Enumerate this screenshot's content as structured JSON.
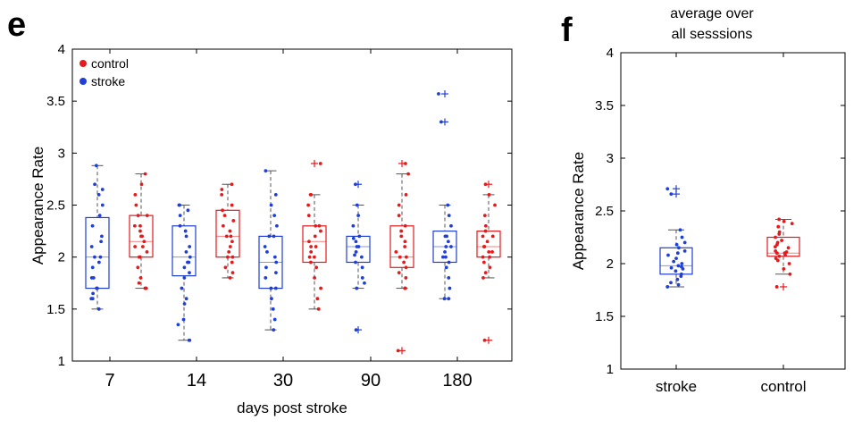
{
  "colors": {
    "control": "#e41a1c",
    "stroke": "#1f3fd6",
    "whisker": "#555555"
  },
  "chart_data": [
    {
      "panel": "e",
      "type": "box",
      "title": "",
      "xlabel": "days post stroke",
      "ylabel": "Appearance Rate",
      "ylim": [
        1,
        4
      ],
      "yticks": [
        1,
        1.5,
        2,
        2.5,
        3,
        3.5,
        4
      ],
      "categories": [
        "7",
        "14",
        "30",
        "90",
        "180"
      ],
      "legend": {
        "placement": "top-left",
        "entries": [
          "control",
          "stroke"
        ]
      },
      "boxes": [
        {
          "category": "7",
          "group": "stroke",
          "q1": 1.7,
          "median": 2.0,
          "q3": 2.38,
          "whisker_low": 1.5,
          "whisker_high": 2.88,
          "outliers": [],
          "points": [
            2.88,
            2.7,
            2.65,
            2.6,
            2.5,
            2.4,
            2.3,
            2.2,
            2.1,
            2.0,
            2.0,
            1.95,
            1.9,
            1.8,
            1.8,
            1.7,
            1.7,
            1.65,
            1.6,
            1.6,
            1.5,
            2.15
          ]
        },
        {
          "category": "7",
          "group": "control",
          "q1": 2.0,
          "median": 2.15,
          "q3": 2.4,
          "whisker_low": 1.7,
          "whisker_high": 2.8,
          "outliers": [],
          "points": [
            2.8,
            2.7,
            2.6,
            2.5,
            2.4,
            2.4,
            2.3,
            2.3,
            2.2,
            2.2,
            2.15,
            2.1,
            2.1,
            2.0,
            2.0,
            1.9,
            1.8,
            1.75,
            1.7,
            1.7,
            2.25,
            2.05
          ]
        },
        {
          "category": "14",
          "group": "stroke",
          "q1": 1.82,
          "median": 2.0,
          "q3": 2.3,
          "whisker_low": 1.2,
          "whisker_high": 2.5,
          "outliers": [],
          "points": [
            2.5,
            2.5,
            2.45,
            2.4,
            2.3,
            2.2,
            2.1,
            2.05,
            2.0,
            1.95,
            1.9,
            1.85,
            1.8,
            1.7,
            1.6,
            1.55,
            1.4,
            1.35,
            1.2,
            1.2,
            2.25,
            1.95
          ]
        },
        {
          "category": "14",
          "group": "control",
          "q1": 2.0,
          "median": 2.2,
          "q3": 2.45,
          "whisker_low": 1.8,
          "whisker_high": 2.7,
          "outliers": [],
          "points": [
            2.7,
            2.65,
            2.6,
            2.5,
            2.45,
            2.4,
            2.3,
            2.25,
            2.2,
            2.2,
            2.15,
            2.1,
            2.0,
            2.0,
            1.95,
            1.9,
            1.85,
            1.8,
            2.35,
            2.05
          ]
        },
        {
          "category": "30",
          "group": "stroke",
          "q1": 1.7,
          "median": 1.95,
          "q3": 2.2,
          "whisker_low": 1.3,
          "whisker_high": 2.83,
          "outliers": [],
          "points": [
            2.83,
            2.6,
            2.5,
            2.4,
            2.2,
            2.2,
            2.1,
            2.0,
            1.95,
            1.9,
            1.85,
            1.8,
            1.7,
            1.7,
            1.6,
            1.5,
            1.4,
            1.3,
            2.3,
            2.05
          ]
        },
        {
          "category": "30",
          "group": "control",
          "q1": 1.95,
          "median": 2.15,
          "q3": 2.3,
          "whisker_low": 1.5,
          "whisker_high": 2.6,
          "outliers": [
            2.9
          ],
          "points": [
            2.9,
            2.6,
            2.6,
            2.5,
            2.4,
            2.3,
            2.3,
            2.2,
            2.15,
            2.1,
            2.05,
            2.0,
            2.0,
            1.95,
            1.9,
            1.8,
            1.7,
            1.6,
            1.5,
            2.25,
            2.1
          ]
        },
        {
          "category": "90",
          "group": "stroke",
          "q1": 1.95,
          "median": 2.1,
          "q3": 2.2,
          "whisker_low": 1.7,
          "whisker_high": 2.5,
          "outliers": [
            2.7,
            1.3
          ],
          "points": [
            2.7,
            2.5,
            2.4,
            2.3,
            2.2,
            2.15,
            2.1,
            2.1,
            2.05,
            2.0,
            1.95,
            1.9,
            1.8,
            1.75,
            1.7,
            1.3,
            2.18,
            2.02
          ]
        },
        {
          "category": "90",
          "group": "control",
          "q1": 1.9,
          "median": 2.0,
          "q3": 2.3,
          "whisker_low": 1.7,
          "whisker_high": 2.8,
          "outliers": [
            2.9,
            1.1
          ],
          "points": [
            2.9,
            2.8,
            2.6,
            2.5,
            2.4,
            2.3,
            2.2,
            2.1,
            2.05,
            2.0,
            2.0,
            1.95,
            1.9,
            1.85,
            1.8,
            1.7,
            1.7,
            1.1,
            2.25,
            2.15
          ]
        },
        {
          "category": "180",
          "group": "stroke",
          "q1": 1.95,
          "median": 2.1,
          "q3": 2.25,
          "whisker_low": 1.6,
          "whisker_high": 2.5,
          "outliers": [
            3.57,
            3.3
          ],
          "points": [
            3.57,
            3.3,
            2.5,
            2.4,
            2.3,
            2.2,
            2.2,
            2.1,
            2.1,
            2.05,
            2.0,
            1.95,
            1.9,
            1.8,
            1.7,
            1.6,
            1.6,
            2.15,
            2.0
          ]
        },
        {
          "category": "180",
          "group": "control",
          "q1": 2.0,
          "median": 2.1,
          "q3": 2.25,
          "whisker_low": 1.8,
          "whisker_high": 2.6,
          "outliers": [
            2.7,
            1.2
          ],
          "points": [
            2.7,
            2.6,
            2.5,
            2.4,
            2.3,
            2.25,
            2.2,
            2.15,
            2.1,
            2.1,
            2.05,
            2.0,
            2.0,
            1.95,
            1.9,
            1.85,
            1.8,
            1.2,
            2.2,
            2.05
          ]
        }
      ]
    },
    {
      "panel": "f",
      "type": "box",
      "title": "average over\nall sesssions",
      "xlabel": "",
      "ylabel": "Appearance Rate",
      "ylim": [
        1,
        4
      ],
      "yticks": [
        1,
        1.5,
        2,
        2.5,
        3,
        3.5,
        4
      ],
      "categories": [
        "stroke",
        "control"
      ],
      "boxes": [
        {
          "category": "stroke",
          "group": "stroke",
          "q1": 1.9,
          "median": 1.98,
          "q3": 2.15,
          "whisker_low": 1.78,
          "whisker_high": 2.32,
          "outliers": [
            2.71,
            2.66
          ],
          "points": [
            2.71,
            2.66,
            2.32,
            2.25,
            2.2,
            2.18,
            2.15,
            2.12,
            2.1,
            2.05,
            2.02,
            2.0,
            1.98,
            1.97,
            1.95,
            1.93,
            1.9,
            1.88,
            1.85,
            1.82,
            1.8,
            1.78,
            2.08,
            1.96
          ]
        },
        {
          "category": "control",
          "group": "control",
          "q1": 2.07,
          "median": 2.1,
          "q3": 2.25,
          "whisker_low": 1.9,
          "whisker_high": 2.42,
          "outliers": [
            1.78
          ],
          "points": [
            2.42,
            2.4,
            2.38,
            2.35,
            2.3,
            2.28,
            2.25,
            2.22,
            2.2,
            2.18,
            2.15,
            2.12,
            2.1,
            2.1,
            2.08,
            2.07,
            2.05,
            2.03,
            2.0,
            1.95,
            1.9,
            1.78,
            2.16,
            2.11
          ]
        }
      ]
    }
  ]
}
